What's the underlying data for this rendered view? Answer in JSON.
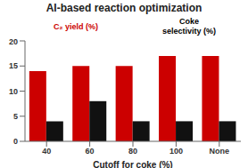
{
  "chart_data": {
    "type": "bar",
    "title": "AI-based reaction optimization",
    "xlabel": "Cutoff for coke (%)",
    "categories": [
      "40",
      "60",
      "80",
      "100",
      "None"
    ],
    "series": [
      {
        "color": "#cc0000",
        "values": [
          14.0,
          15.0,
          15.0,
          17.0,
          17.0
        ]
      },
      {
        "color": "#111111",
        "values": [
          4.0,
          8.0,
          4.0,
          4.0,
          4.0
        ]
      }
    ],
    "ylim": [
      0,
      20
    ],
    "yticks": [
      0,
      5,
      10,
      15,
      20
    ],
    "grid": false,
    "annotations": [
      {
        "text": "C₂ yield (%)",
        "color": "#cc0000"
      },
      {
        "text": "Coke\nselectivity (%)",
        "color": "#000000"
      }
    ]
  }
}
